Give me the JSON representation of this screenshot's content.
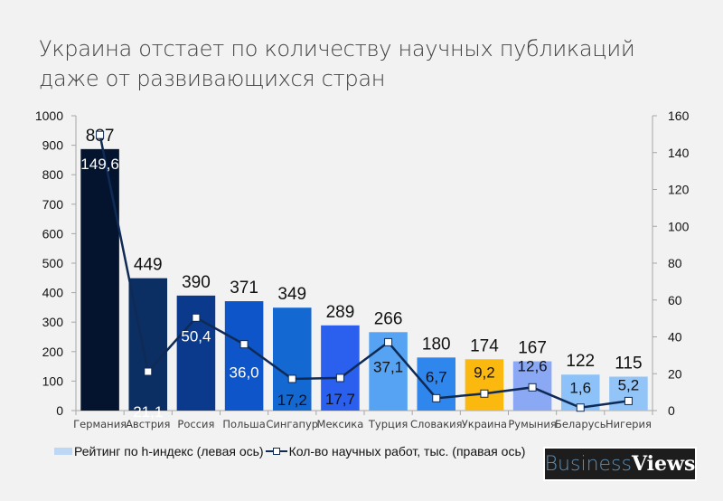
{
  "chart_data": {
    "type": "bar",
    "title_lines": [
      "Украина отстает по количеству научных публикаций",
      "даже от развивающихся стран"
    ],
    "categories": [
      "Германия",
      "Австрия",
      "Россия",
      "Польша",
      "Сингапур",
      "Мексика",
      "Турция",
      "Словакия",
      "Украина",
      "Румыния",
      "Беларусь",
      "Нигерия"
    ],
    "series": [
      {
        "name": "Рейтинг по h-индекс (левая ось)",
        "type": "bar",
        "axis": "left",
        "values": [
          887,
          449,
          390,
          371,
          349,
          289,
          266,
          180,
          174,
          167,
          122,
          115
        ],
        "labels": [
          "887",
          "449",
          "390",
          "371",
          "349",
          "289",
          "266",
          "180",
          "174",
          "167",
          "122",
          "115"
        ],
        "colors": [
          "#04142e",
          "#0c2f63",
          "#0b3a8c",
          "#0d55c8",
          "#1468d2",
          "#2b5fee",
          "#55a3f2",
          "#2f86ec",
          "#fbb80f",
          "#8aa8f4",
          "#8cc2f7",
          "#92c4f8"
        ]
      },
      {
        "name": "Кол-во научных работ, тыс. (правая ось)",
        "type": "line",
        "axis": "right",
        "values": [
          149.6,
          21.1,
          50.4,
          36.0,
          17.2,
          17.7,
          37.1,
          6.7,
          9.2,
          12.6,
          1.6,
          5.2
        ],
        "labels": [
          "149,6",
          "21,1",
          "50,4",
          "36,0",
          "17,2",
          "17,7",
          "37,1",
          "6,7",
          "9,2",
          "12,6",
          "1,6",
          "5,2"
        ],
        "color": "#0f2a55"
      }
    ],
    "y_left": {
      "ylim": [
        0,
        1000
      ],
      "ticks": [
        "0",
        "100",
        "200",
        "300",
        "400",
        "500",
        "600",
        "700",
        "800",
        "900",
        "1000"
      ]
    },
    "y_right": {
      "ylim": [
        0,
        160
      ],
      "ticks": [
        "0",
        "20",
        "40",
        "60",
        "80",
        "100",
        "120",
        "140",
        "160"
      ]
    },
    "grid": false,
    "legend_position": "bottom"
  },
  "brand": {
    "part1": "Business",
    "part2": "Views"
  }
}
